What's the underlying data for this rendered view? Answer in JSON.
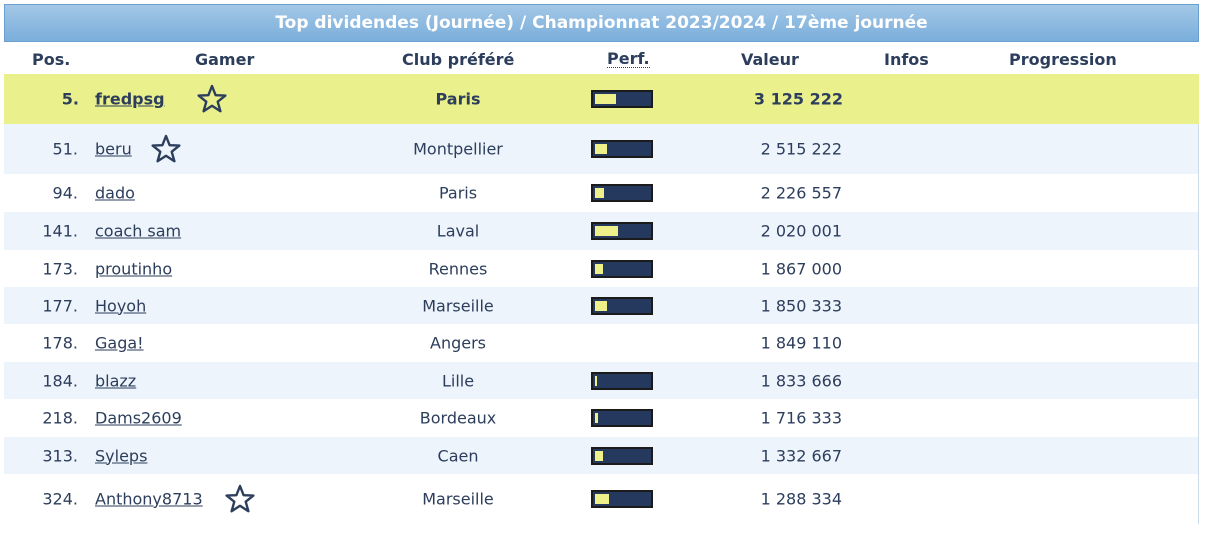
{
  "title": "Top dividendes (Journée) / Championnat 2023/2024 / 17ème journée",
  "headers": {
    "pos": "Pos.",
    "gamer": "Gamer",
    "club": "Club préféré",
    "perf": "Perf.",
    "valeur": "Valeur",
    "infos": "Infos",
    "progression": "Progression"
  },
  "colors": {
    "title_bg": "#7aaedb",
    "highlight_bg": "#eaf08c",
    "alt_row_bg": "#edf4fc",
    "perf_bar_bg": "#25395e",
    "perf_bar_fill": "#eef08a",
    "text": "#2c3e5c"
  },
  "rows": [
    {
      "pos": "5.",
      "gamer": "fredpsg",
      "star": true,
      "club": "Paris",
      "perf_fraction": 0.38,
      "valeur": "3 125 222",
      "highlight": true
    },
    {
      "pos": "51.",
      "gamer": "beru",
      "star": true,
      "club": "Montpellier",
      "perf_fraction": 0.22,
      "valeur": "2 515 222"
    },
    {
      "pos": "94.",
      "gamer": "dado",
      "star": false,
      "club": "Paris",
      "perf_fraction": 0.16,
      "valeur": "2 226 557"
    },
    {
      "pos": "141.",
      "gamer": "coach sam",
      "star": false,
      "club": "Laval",
      "perf_fraction": 0.42,
      "valeur": "2 020 001"
    },
    {
      "pos": "173.",
      "gamer": "proutinho",
      "star": false,
      "club": "Rennes",
      "perf_fraction": 0.14,
      "valeur": "1 867 000"
    },
    {
      "pos": "177.",
      "gamer": "Hoyoh",
      "star": false,
      "club": "Marseille",
      "perf_fraction": 0.22,
      "valeur": "1 850 333"
    },
    {
      "pos": "178.",
      "gamer": "Gaga!",
      "star": false,
      "club": "Angers",
      "perf_fraction": null,
      "valeur": "1 849 110"
    },
    {
      "pos": "184.",
      "gamer": "blazz",
      "star": false,
      "club": "Lille",
      "perf_fraction": 0.04,
      "valeur": "1 833 666"
    },
    {
      "pos": "218.",
      "gamer": "Dams2609",
      "star": false,
      "club": "Bordeaux",
      "perf_fraction": 0.06,
      "valeur": "1 716 333"
    },
    {
      "pos": "313.",
      "gamer": "Syleps",
      "star": false,
      "club": "Caen",
      "perf_fraction": 0.14,
      "valeur": "1 332 667"
    },
    {
      "pos": "324.",
      "gamer": "Anthony8713",
      "star": true,
      "club": "Marseille",
      "perf_fraction": 0.26,
      "valeur": "1 288 334"
    }
  ]
}
